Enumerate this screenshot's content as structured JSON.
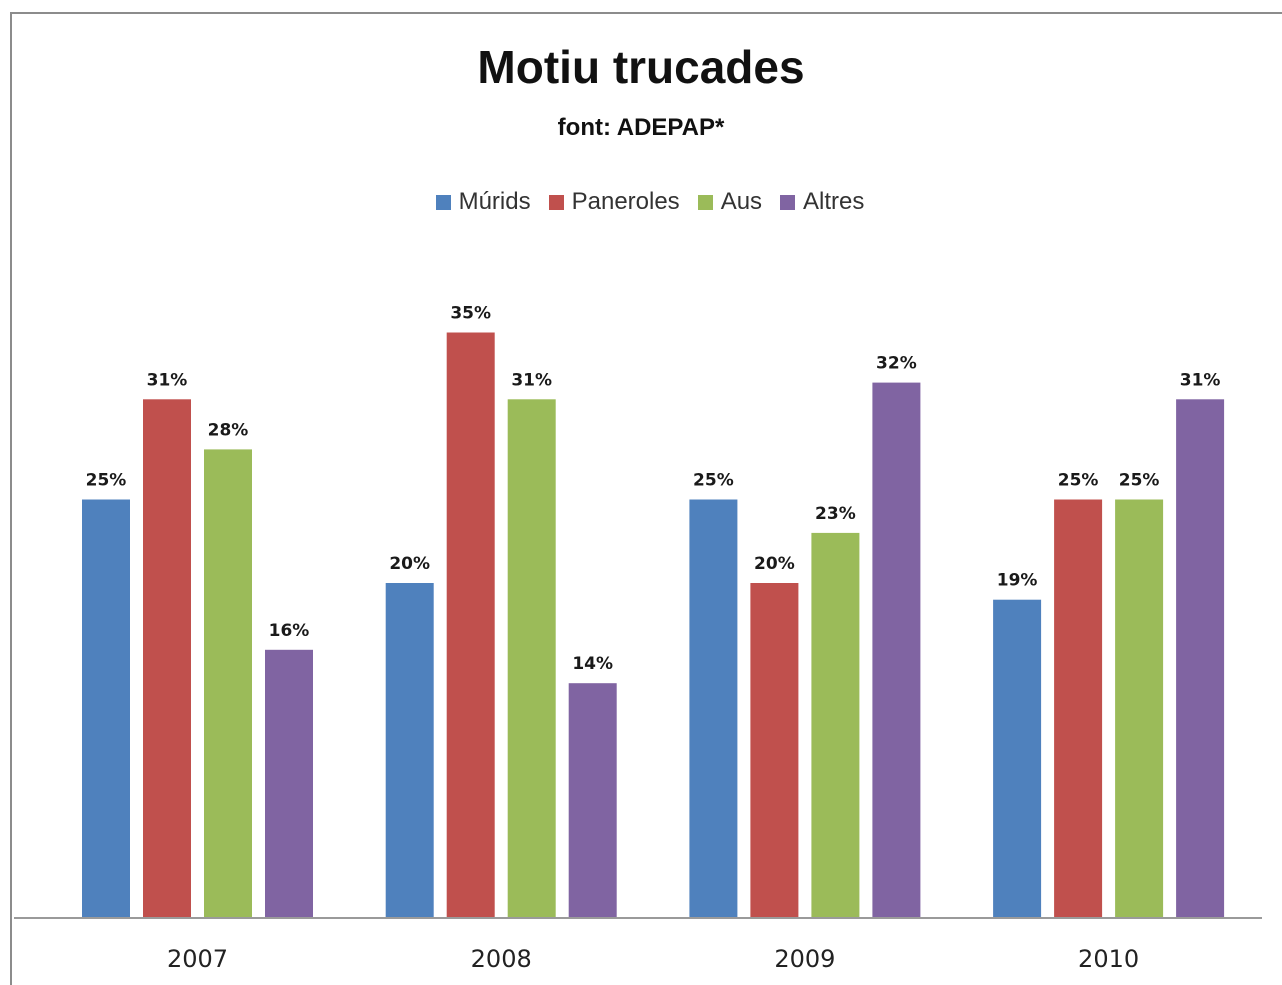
{
  "chart_data": {
    "type": "bar",
    "title": "Motiu trucades",
    "subtitle": "font: ADEPAP*",
    "categories": [
      "2007",
      "2008",
      "2009",
      "2010"
    ],
    "series": [
      {
        "name": "Múrids",
        "color": "#4f81bd",
        "values": [
          25,
          20,
          25,
          19
        ],
        "labels": [
          "25%",
          "20%",
          "25%",
          "19%"
        ]
      },
      {
        "name": "Paneroles",
        "color": "#c0504d",
        "values": [
          31,
          35,
          20,
          25
        ],
        "labels": [
          "31%",
          "35%",
          "20%",
          "25%"
        ]
      },
      {
        "name": "Aus",
        "color": "#9bbb59",
        "values": [
          28,
          31,
          23,
          25
        ],
        "labels": [
          "28%",
          "31%",
          "23%",
          "25%"
        ]
      },
      {
        "name": "Altres",
        "color": "#8064a2",
        "values": [
          16,
          14,
          32,
          31
        ],
        "labels": [
          "16%",
          "14%",
          "32%",
          "31%"
        ]
      }
    ],
    "ylim": [
      0,
      35
    ],
    "unit": "%",
    "legend_position": "top",
    "grid": false,
    "xlabel": "",
    "ylabel": ""
  }
}
